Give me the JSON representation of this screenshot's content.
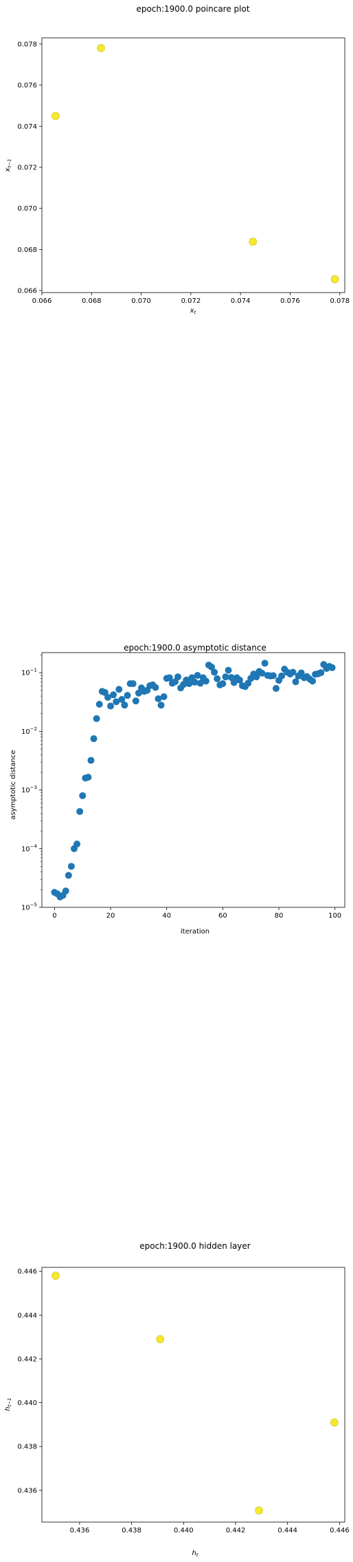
{
  "chart_data": [
    {
      "type": "scatter",
      "title": "epoch:1900.0 poincare plot",
      "xlabel": "x_t",
      "ylabel": "x_{t-1}",
      "xlim": [
        0.066,
        0.0782
      ],
      "ylim": [
        0.0659,
        0.0783
      ],
      "xticks": [
        "0.066",
        "0.068",
        "0.070",
        "0.072",
        "0.074",
        "0.076",
        "0.078"
      ],
      "yticks": [
        "0.066",
        "0.068",
        "0.070",
        "0.072",
        "0.074",
        "0.076",
        "0.078"
      ],
      "marker_color": "#f7e82f",
      "points": [
        {
          "x": 0.06655,
          "y": 0.0745
        },
        {
          "x": 0.06838,
          "y": 0.0778
        },
        {
          "x": 0.0745,
          "y": 0.06838
        },
        {
          "x": 0.0778,
          "y": 0.06655
        }
      ]
    },
    {
      "type": "scatter",
      "title": "epoch:1900.0 asymptotic distance",
      "xlabel": "iteration",
      "ylabel": "asymptotic distance",
      "xlim": [
        -4.5,
        103.5
      ],
      "ylog": true,
      "ylim": [
        1e-05,
        0.22
      ],
      "xticks": [
        "0",
        "20",
        "40",
        "60",
        "80",
        "100"
      ],
      "yticks": [
        "10^-5",
        "10^-4",
        "10^-3",
        "10^-2",
        "10^-1"
      ],
      "marker_color": "#1f77b4",
      "x": [
        0,
        1,
        2,
        3,
        4,
        5,
        6,
        7,
        8,
        9,
        10,
        11,
        12,
        13,
        14,
        15,
        16,
        17,
        18,
        19,
        20,
        21,
        22,
        23,
        24,
        25,
        26,
        27,
        28,
        29,
        30,
        31,
        32,
        33,
        34,
        35,
        36,
        37,
        38,
        39,
        40,
        41,
        42,
        43,
        44,
        45,
        46,
        47,
        48,
        49,
        50,
        51,
        52,
        53,
        54,
        55,
        56,
        57,
        58,
        59,
        60,
        61,
        62,
        63,
        64,
        65,
        66,
        67,
        68,
        69,
        70,
        71,
        72,
        73,
        74,
        75,
        76,
        77,
        78,
        79,
        80,
        81,
        82,
        83,
        84,
        85,
        86,
        87,
        88,
        89,
        90,
        91,
        92,
        93,
        94,
        95,
        96,
        97,
        98,
        99
      ],
      "y": [
        1.8e-05,
        1.7e-05,
        1.5e-05,
        1.6e-05,
        1.9e-05,
        3.5e-05,
        5e-05,
        0.0001,
        0.00012,
        0.00043,
        0.0008,
        0.0016,
        0.00165,
        0.0032,
        0.0075,
        0.0165,
        0.029,
        0.048,
        0.046,
        0.038,
        0.027,
        0.042,
        0.032,
        0.052,
        0.035,
        0.028,
        0.041,
        0.065,
        0.065,
        0.033,
        0.045,
        0.055,
        0.048,
        0.05,
        0.06,
        0.062,
        0.056,
        0.036,
        0.028,
        0.039,
        0.08,
        0.082,
        0.066,
        0.07,
        0.085,
        0.055,
        0.063,
        0.075,
        0.065,
        0.082,
        0.069,
        0.09,
        0.066,
        0.082,
        0.072,
        0.135,
        0.125,
        0.102,
        0.079,
        0.062,
        0.065,
        0.085,
        0.11,
        0.083,
        0.068,
        0.082,
        0.075,
        0.06,
        0.058,
        0.066,
        0.08,
        0.095,
        0.085,
        0.105,
        0.098,
        0.145,
        0.09,
        0.088,
        0.089,
        0.054,
        0.074,
        0.088,
        0.115,
        0.102,
        0.095,
        0.102,
        0.07,
        0.088,
        0.099,
        0.082,
        0.086,
        0.078,
        0.072,
        0.094,
        0.096,
        0.1,
        0.138,
        0.118,
        0.128,
        0.122
      ]
    },
    {
      "type": "scatter",
      "title": "epoch:1900.0 hidden layer",
      "xlabel": "h_t",
      "ylabel": "h_{t-1}",
      "xlim": [
        0.43455,
        0.4462
      ],
      "ylim": [
        0.43455,
        0.44618
      ],
      "xticks": [
        "0.436",
        "0.438",
        "0.440",
        "0.442",
        "0.444",
        "0.446"
      ],
      "yticks": [
        "0.436",
        "0.438",
        "0.440",
        "0.442",
        "0.444",
        "0.446"
      ],
      "marker_color": "#f7e82f",
      "points": [
        {
          "x": 0.43508,
          "y": 0.4458
        },
        {
          "x": 0.4391,
          "y": 0.4429
        },
        {
          "x": 0.4429,
          "y": 0.43508
        },
        {
          "x": 0.4458,
          "y": 0.4391
        }
      ]
    }
  ]
}
